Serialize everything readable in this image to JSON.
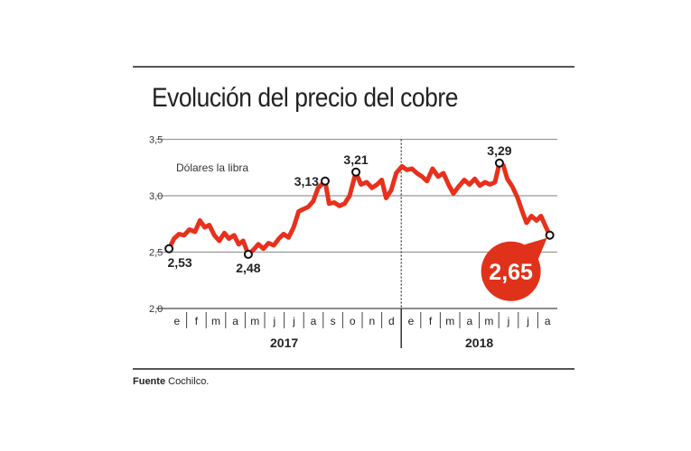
{
  "chart_data": {
    "type": "line",
    "title": "Evolución del precio del cobre",
    "unit_label": "Dólares la libra",
    "source_label": "Fuente",
    "source": "Cochilco.",
    "ylim": [
      2.0,
      3.5
    ],
    "y_ticks": [
      "2,0",
      "2,5",
      "3,0",
      "3,5"
    ],
    "y_tick_values": [
      2.0,
      2.5,
      3.0,
      3.5
    ],
    "grid": true,
    "xlim": [
      "2017-01-01",
      "2018-08-31"
    ],
    "years": [
      {
        "label": "2017",
        "months": [
          "e",
          "f",
          "m",
          "a",
          "m",
          "j",
          "j",
          "a",
          "s",
          "o",
          "n",
          "d"
        ]
      },
      {
        "label": "2018",
        "months": [
          "e",
          "f",
          "m",
          "a",
          "m",
          "j",
          "j",
          "a"
        ]
      }
    ],
    "line_color": "#e8301c",
    "highlight_color": "#e0321b",
    "series": [
      {
        "points": [
          [
            "2017-01-04",
            2.53
          ],
          [
            "2017-01-12",
            2.62
          ],
          [
            "2017-01-20",
            2.66
          ],
          [
            "2017-01-28",
            2.65
          ],
          [
            "2017-02-05",
            2.7
          ],
          [
            "2017-02-13",
            2.68
          ],
          [
            "2017-02-20",
            2.78
          ],
          [
            "2017-02-27",
            2.72
          ],
          [
            "2017-03-06",
            2.74
          ],
          [
            "2017-03-14",
            2.65
          ],
          [
            "2017-03-22",
            2.6
          ],
          [
            "2017-03-30",
            2.67
          ],
          [
            "2017-04-06",
            2.62
          ],
          [
            "2017-04-14",
            2.65
          ],
          [
            "2017-04-21",
            2.57
          ],
          [
            "2017-04-28",
            2.6
          ],
          [
            "2017-05-06",
            2.48
          ],
          [
            "2017-05-14",
            2.52
          ],
          [
            "2017-05-22",
            2.57
          ],
          [
            "2017-05-30",
            2.53
          ],
          [
            "2017-06-07",
            2.58
          ],
          [
            "2017-06-15",
            2.56
          ],
          [
            "2017-06-23",
            2.62
          ],
          [
            "2017-06-30",
            2.66
          ],
          [
            "2017-07-08",
            2.63
          ],
          [
            "2017-07-16",
            2.72
          ],
          [
            "2017-07-24",
            2.86
          ],
          [
            "2017-07-31",
            2.88
          ],
          [
            "2017-08-08",
            2.9
          ],
          [
            "2017-08-16",
            2.95
          ],
          [
            "2017-08-24",
            3.07
          ],
          [
            "2017-09-04",
            3.13
          ],
          [
            "2017-09-10",
            2.93
          ],
          [
            "2017-09-18",
            2.94
          ],
          [
            "2017-09-26",
            2.91
          ],
          [
            "2017-10-04",
            2.93
          ],
          [
            "2017-10-12",
            3.0
          ],
          [
            "2017-10-22",
            3.21
          ],
          [
            "2017-10-30",
            3.1
          ],
          [
            "2017-11-08",
            3.12
          ],
          [
            "2017-11-16",
            3.07
          ],
          [
            "2017-11-24",
            3.1
          ],
          [
            "2017-12-01",
            3.14
          ],
          [
            "2017-12-08",
            2.98
          ],
          [
            "2017-12-16",
            3.05
          ],
          [
            "2017-12-24",
            3.2
          ],
          [
            "2018-01-02",
            3.26
          ],
          [
            "2018-01-10",
            3.23
          ],
          [
            "2018-01-18",
            3.24
          ],
          [
            "2018-01-26",
            3.2
          ],
          [
            "2018-02-03",
            3.17
          ],
          [
            "2018-02-10",
            3.13
          ],
          [
            "2018-02-18",
            3.24
          ],
          [
            "2018-02-26",
            3.17
          ],
          [
            "2018-03-06",
            3.2
          ],
          [
            "2018-03-14",
            3.1
          ],
          [
            "2018-03-22",
            3.02
          ],
          [
            "2018-03-30",
            3.08
          ],
          [
            "2018-04-08",
            3.14
          ],
          [
            "2018-04-16",
            3.1
          ],
          [
            "2018-04-24",
            3.15
          ],
          [
            "2018-05-02",
            3.09
          ],
          [
            "2018-05-10",
            3.12
          ],
          [
            "2018-05-18",
            3.1
          ],
          [
            "2018-05-26",
            3.12
          ],
          [
            "2018-06-02",
            3.29
          ],
          [
            "2018-06-08",
            3.27
          ],
          [
            "2018-06-14",
            3.15
          ],
          [
            "2018-06-22",
            3.08
          ],
          [
            "2018-06-30",
            2.98
          ],
          [
            "2018-07-08",
            2.85
          ],
          [
            "2018-07-14",
            2.76
          ],
          [
            "2018-07-22",
            2.82
          ],
          [
            "2018-07-30",
            2.78
          ],
          [
            "2018-08-06",
            2.82
          ],
          [
            "2018-08-14",
            2.72
          ],
          [
            "2018-08-20",
            2.65
          ]
        ]
      }
    ],
    "annotations": [
      {
        "date": "2017-01-04",
        "value": 2.53,
        "label": "2,53",
        "pos": "below"
      },
      {
        "date": "2017-05-06",
        "value": 2.48,
        "label": "2,48",
        "pos": "below"
      },
      {
        "date": "2017-09-04",
        "value": 3.13,
        "label": "3,13",
        "pos": "left"
      },
      {
        "date": "2017-10-22",
        "value": 3.21,
        "label": "3,21",
        "pos": "above"
      },
      {
        "date": "2018-06-02",
        "value": 3.29,
        "label": "3,29",
        "pos": "above"
      },
      {
        "date": "2018-08-20",
        "value": 2.65,
        "label": "2,65",
        "pos": "bubble"
      }
    ]
  }
}
